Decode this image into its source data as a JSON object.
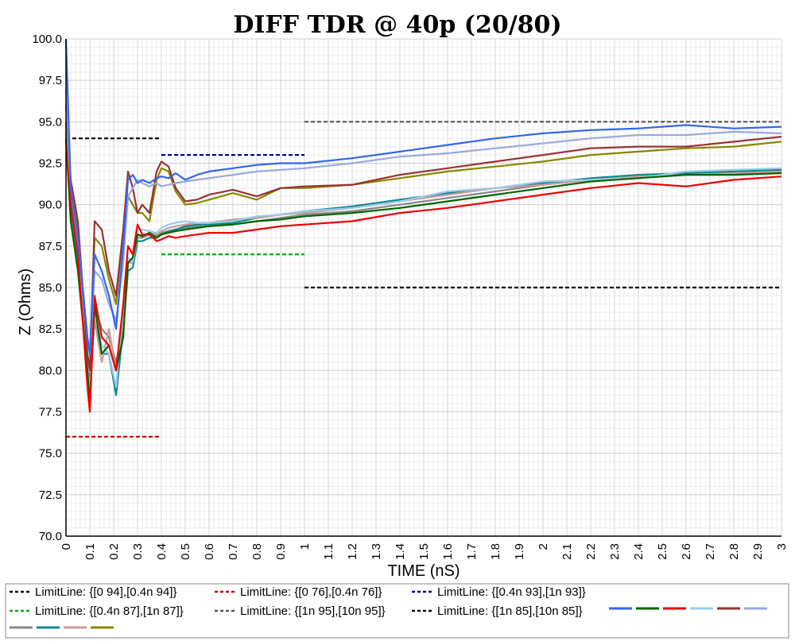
{
  "chart_data": {
    "type": "line",
    "title": "DIFF TDR @ 40p (20/80)",
    "xlabel": "TIME (nS)",
    "ylabel": "Z (Ohms)",
    "xlim": [
      0,
      3
    ],
    "ylim": [
      70,
      100
    ],
    "grid": true,
    "x_ticks": [
      "0",
      "0.1",
      "0.2",
      "0.3",
      "0.4",
      "0.5",
      "0.6",
      "0.7",
      "0.8",
      "0.9",
      "1",
      "1.1",
      "1.2",
      "1.3",
      "1.4",
      "1.5",
      "1.6",
      "1.7",
      "1.8",
      "1.9",
      "2",
      "2.1",
      "2.2",
      "2.3",
      "2.4",
      "2.5",
      "2.6",
      "2.7",
      "2.8",
      "2.9",
      "3"
    ],
    "y_ticks": [
      "70.0",
      "72.5",
      "75.0",
      "77.5",
      "80.0",
      "82.5",
      "85.0",
      "87.5",
      "90.0",
      "92.5",
      "95.0",
      "97.5",
      "100.0"
    ],
    "limit_lines": [
      {
        "name": "LimitLine: {[0 94],[0.4n 94]}",
        "color": "#000000",
        "x": [
          0,
          0.4
        ],
        "y": [
          94,
          94
        ]
      },
      {
        "name": "LimitLine: {[0 76],[0.4n 76]}",
        "color": "#cc0000",
        "x": [
          0,
          0.4
        ],
        "y": [
          76,
          76
        ]
      },
      {
        "name": "LimitLine: {[0.4n 93],[1n 93]}",
        "color": "#00008b",
        "x": [
          0.4,
          1
        ],
        "y": [
          93,
          93
        ]
      },
      {
        "name": "LimitLine: {[0.4n 87],[1n 87]}",
        "color": "#00b000",
        "x": [
          0.4,
          1
        ],
        "y": [
          87,
          87
        ]
      },
      {
        "name": "LimitLine: {[1n 95],[10n 95]}",
        "color": "#555555",
        "x": [
          1,
          3
        ],
        "y": [
          95,
          95
        ]
      },
      {
        "name": "LimitLine: {[1n 85],[10n 85]}",
        "color": "#000000",
        "x": [
          1,
          3
        ],
        "y": [
          85,
          85
        ]
      }
    ],
    "x": [
      0,
      0.02,
      0.05,
      0.09,
      0.1,
      0.12,
      0.15,
      0.18,
      0.21,
      0.24,
      0.26,
      0.28,
      0.3,
      0.32,
      0.35,
      0.38,
      0.4,
      0.43,
      0.46,
      0.5,
      0.55,
      0.6,
      0.7,
      0.8,
      0.9,
      1.0,
      1.2,
      1.4,
      1.6,
      1.8,
      2.0,
      2.2,
      2.4,
      2.6,
      2.8,
      3.0
    ],
    "series": [
      {
        "color": "#3366ee",
        "values": [
          100,
          91,
          88,
          82,
          81,
          87,
          86,
          84.5,
          82.5,
          87.5,
          91.5,
          91.8,
          91.3,
          91.5,
          91.3,
          91.6,
          91.7,
          91.6,
          91.9,
          91.5,
          91.8,
          92,
          92.2,
          92.4,
          92.5,
          92.5,
          92.8,
          93.2,
          93.6,
          94,
          94.3,
          94.5,
          94.6,
          94.8,
          94.6,
          94.7
        ]
      },
      {
        "color": "#006600",
        "values": [
          94,
          89,
          86,
          80,
          78,
          84,
          81,
          81.5,
          80,
          82,
          86.5,
          86.8,
          88.2,
          88.1,
          88.3,
          88,
          88.2,
          88.3,
          88.4,
          88.5,
          88.6,
          88.7,
          88.8,
          89,
          89.1,
          89.3,
          89.5,
          89.8,
          90.2,
          90.6,
          91,
          91.4,
          91.6,
          91.8,
          91.8,
          91.9
        ]
      },
      {
        "color": "#ee0000",
        "values": [
          94,
          90,
          87,
          79,
          77.5,
          84.5,
          82,
          81.5,
          80,
          84,
          87.5,
          87,
          88.8,
          88.2,
          88.2,
          87.8,
          87.9,
          88.1,
          88,
          88.1,
          88.2,
          88.3,
          88.3,
          88.5,
          88.7,
          88.8,
          89,
          89.5,
          89.8,
          90.2,
          90.6,
          91,
          91.3,
          91.1,
          91.5,
          91.7
        ]
      },
      {
        "color": "#99ccee",
        "values": [
          94,
          90,
          87,
          80,
          79,
          83.5,
          81.5,
          81,
          79,
          84,
          86.8,
          86.6,
          88.5,
          88.5,
          88.4,
          88.3,
          88.6,
          88.8,
          88.9,
          89,
          88.9,
          88.9,
          89,
          89.3,
          89.4,
          89.6,
          89.8,
          90.2,
          90.8,
          91,
          91.4,
          91.5,
          91.6,
          92,
          92.1,
          92.2
        ]
      },
      {
        "color": "#993333",
        "values": [
          96,
          91.5,
          89,
          81,
          80,
          89,
          88.5,
          86,
          84.5,
          88.5,
          92,
          91,
          89.5,
          90,
          89.5,
          92,
          92.6,
          92.3,
          91,
          90.2,
          90.3,
          90.6,
          90.9,
          90.5,
          91,
          91.1,
          91.2,
          91.8,
          92.2,
          92.6,
          93,
          93.4,
          93.5,
          93.5,
          93.8,
          94.1
        ]
      },
      {
        "color": "#99aadd",
        "values": [
          97,
          91,
          88,
          82,
          81,
          86,
          85.5,
          84,
          83,
          86.5,
          90.5,
          91,
          91.5,
          91.3,
          91.1,
          91.3,
          91.1,
          91.2,
          91.3,
          91.4,
          91.5,
          91.6,
          91.8,
          92,
          92.1,
          92.2,
          92.5,
          92.9,
          93.1,
          93.4,
          93.7,
          94,
          94.2,
          94.2,
          94.4,
          94.3
        ]
      },
      {
        "color": "#888888",
        "values": [
          95,
          90.5,
          87.5,
          80,
          79,
          84,
          82.5,
          82,
          80.5,
          82.5,
          86.5,
          86.5,
          88,
          88,
          88.2,
          88.1,
          88.3,
          88.4,
          88.5,
          88.6,
          88.7,
          88.7,
          88.8,
          89,
          89.2,
          89.4,
          89.6,
          90,
          90.4,
          90.8,
          91.2,
          91.5,
          91.7,
          91.9,
          91.9,
          92
        ]
      },
      {
        "color": "#118888",
        "values": [
          94.5,
          89.5,
          86.5,
          80,
          79.5,
          83,
          81,
          81,
          78.5,
          82.5,
          86,
          86.2,
          87.8,
          87.8,
          88,
          88,
          88.2,
          88.4,
          88.5,
          88.7,
          88.8,
          88.8,
          88.9,
          89.2,
          89.4,
          89.6,
          89.9,
          90.3,
          90.7,
          91,
          91.3,
          91.6,
          91.8,
          91.9,
          92,
          92.1
        ]
      },
      {
        "color": "#cc9999",
        "values": [
          94.5,
          90,
          87,
          80.5,
          80,
          83,
          80.5,
          82.5,
          80,
          83,
          86.5,
          86.5,
          88.2,
          88.1,
          88.3,
          88.2,
          88.4,
          88.6,
          88.7,
          88.8,
          88.9,
          88.9,
          89.1,
          89.2,
          89.4,
          89.5,
          89.8,
          90.2,
          90.6,
          91,
          91.2,
          91.5,
          91.7,
          91.8,
          91.9,
          92
        ]
      },
      {
        "color": "#888800",
        "values": [
          95,
          91,
          88.5,
          81,
          80,
          88,
          87.5,
          85.5,
          84,
          88.5,
          90.5,
          90,
          89.5,
          89.5,
          89,
          91.5,
          92.2,
          92,
          90.8,
          90,
          90.1,
          90.3,
          90.7,
          90.3,
          91,
          91,
          91.2,
          91.6,
          92,
          92.3,
          92.6,
          93,
          93.2,
          93.4,
          93.5,
          93.8
        ]
      }
    ]
  }
}
